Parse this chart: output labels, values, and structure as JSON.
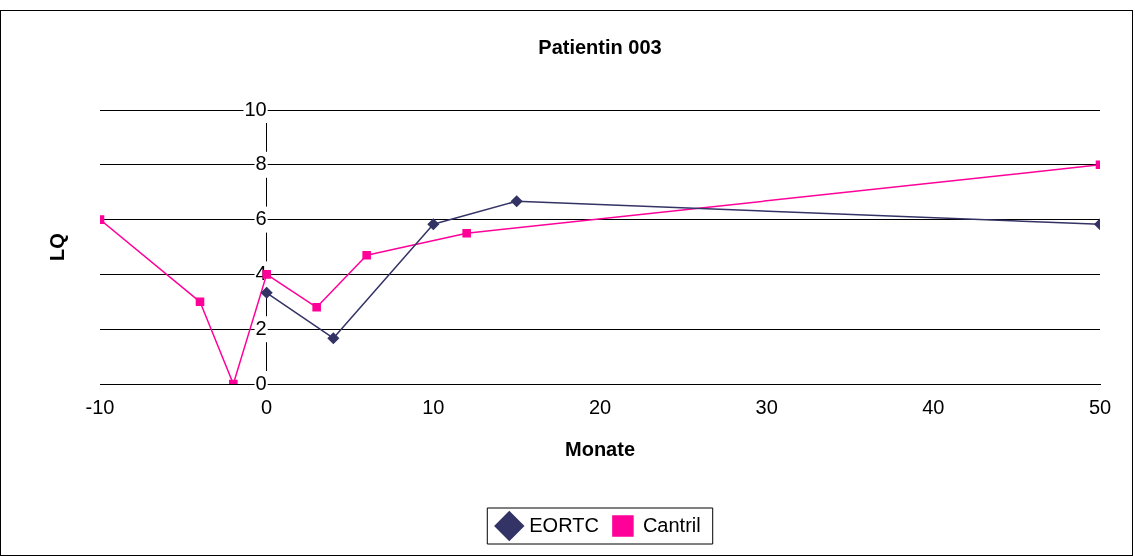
{
  "chart_data": {
    "type": "line",
    "title": "Patientin 003",
    "xlabel": "Monate",
    "ylabel": "LQ",
    "xlim": [
      -10,
      50
    ],
    "xticks": [
      -10,
      0,
      10,
      20,
      30,
      40,
      50
    ],
    "ylim": [
      0,
      10
    ],
    "yticks": [
      0,
      2,
      4,
      6,
      8,
      10
    ],
    "grid": "y",
    "legend": "bottom",
    "series": [
      {
        "name": "EORTC",
        "color": "#333366",
        "marker": "diamond",
        "x": [
          0,
          4,
          10,
          15,
          50
        ],
        "values": [
          3.33,
          1.67,
          5.83,
          6.67,
          5.83
        ]
      },
      {
        "name": "Cantril",
        "color": "#ff0099",
        "marker": "square",
        "x": [
          -10,
          -4,
          -2,
          0,
          3,
          6,
          12,
          50
        ],
        "values": [
          6,
          3,
          0,
          4,
          2.8,
          4.7,
          5.5,
          8
        ]
      }
    ]
  }
}
